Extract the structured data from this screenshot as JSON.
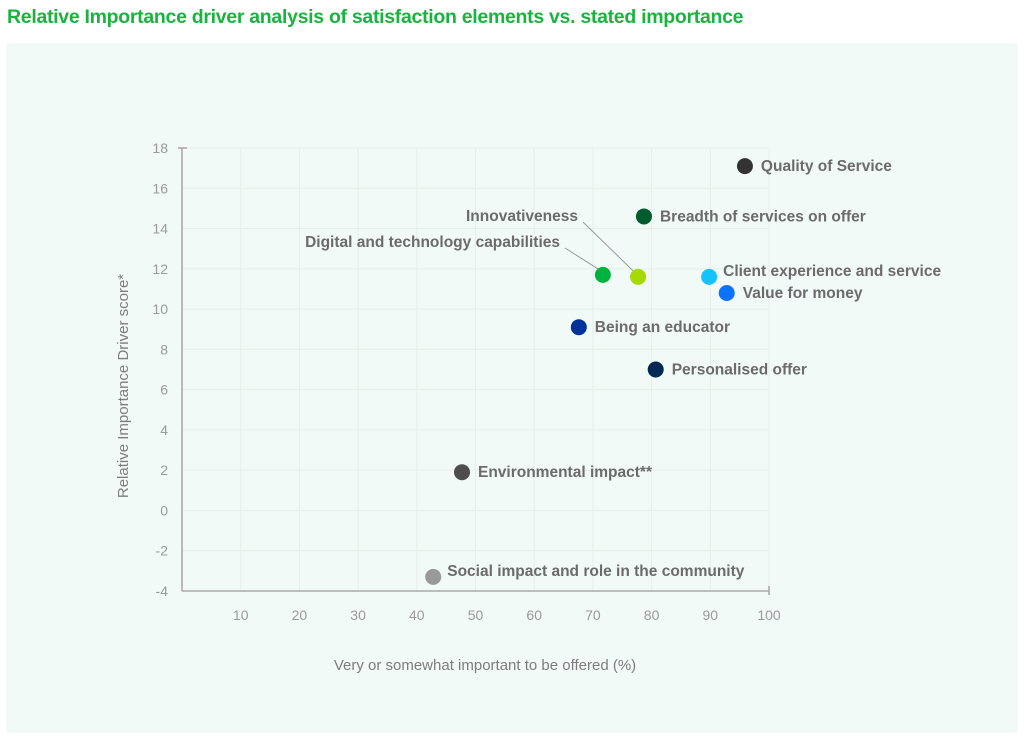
{
  "title": "Relative Importance driver analysis of satisfaction elements vs. stated importance",
  "chart_data": {
    "type": "scatter",
    "title": "Relative Importance driver analysis of satisfaction elements vs. stated importance",
    "xlabel": "Very or somewhat important to be offered (%)",
    "ylabel": "Relative Importance Driver score*",
    "xlim": [
      0,
      100
    ],
    "ylim": [
      -4,
      18
    ],
    "xticks": [
      10,
      20,
      30,
      40,
      50,
      60,
      70,
      80,
      90,
      100
    ],
    "yticks": [
      -4,
      -2,
      0,
      2,
      4,
      6,
      8,
      10,
      12,
      14,
      16,
      18
    ],
    "grid": true,
    "legend": "none (direct labels)",
    "points": [
      {
        "label": "Quality of Service",
        "x": 95.9,
        "y": 17.1,
        "color": "#333333",
        "label_side": "right"
      },
      {
        "label": "Breadth of services on offer",
        "x": 78.7,
        "y": 14.6,
        "color": "#005c2e",
        "label_side": "right"
      },
      {
        "label": "Digital and technology capabilities",
        "x": 71.7,
        "y": 11.7,
        "color": "#00b33c",
        "label_side": "leader-left"
      },
      {
        "label": "Innovativeness",
        "x": 77.7,
        "y": 11.6,
        "color": "#a6d900",
        "label_side": "leader-left"
      },
      {
        "label": "Client experience and service",
        "x": 89.8,
        "y": 11.6,
        "color": "#17c3ff",
        "label_side": "right-up"
      },
      {
        "label": "Value for money",
        "x": 92.8,
        "y": 10.8,
        "color": "#0a74ff",
        "label_side": "right"
      },
      {
        "label": "Being an educator",
        "x": 67.6,
        "y": 9.1,
        "color": "#003399",
        "label_side": "right"
      },
      {
        "label": "Personalised offer",
        "x": 80.7,
        "y": 7.0,
        "color": "#002855",
        "label_side": "right"
      },
      {
        "label": "Environmental impact**",
        "x": 47.7,
        "y": 1.9,
        "color": "#4d4d4d",
        "label_side": "right"
      },
      {
        "label": "Social impact and role in the community",
        "x": 42.8,
        "y": -3.3,
        "color": "#999999",
        "label_side": "right-up"
      }
    ]
  },
  "colors": {
    "title": "#1bb33f",
    "panel_background": "#f1faf6",
    "axis": "#aaaaaa",
    "grid": "#e6efea"
  }
}
